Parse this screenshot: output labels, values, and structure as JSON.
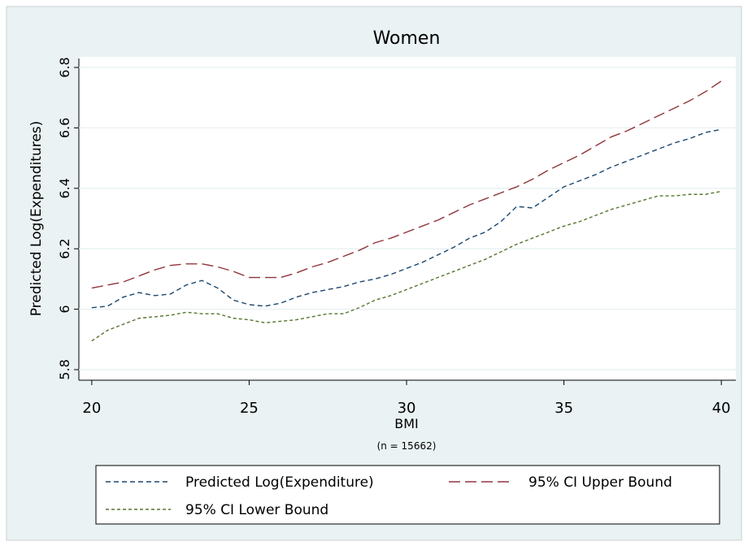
{
  "chart_data": {
    "type": "line",
    "title": "Women",
    "x_label": "BMI",
    "y_label": "Predicted Log(Expenditures)",
    "note": "(n = 15662)",
    "x": [
      20,
      20.5,
      21,
      21.5,
      22,
      22.5,
      23,
      23.5,
      24,
      24.5,
      25,
      25.5,
      26,
      26.5,
      27,
      27.5,
      28,
      28.5,
      29,
      29.5,
      30,
      30.5,
      31,
      31.5,
      32,
      32.5,
      33,
      33.5,
      34,
      34.5,
      35,
      35.5,
      36,
      36.5,
      37,
      37.5,
      38,
      38.5,
      39,
      39.5,
      40
    ],
    "series": [
      {
        "name": "Predicted Log(Expenditure)",
        "color": "#1a476f",
        "dash": "6 4",
        "values": [
          6.005,
          6.01,
          6.04,
          6.055,
          6.045,
          6.05,
          6.08,
          6.095,
          6.07,
          6.03,
          6.015,
          6.01,
          6.02,
          6.04,
          6.055,
          6.065,
          6.075,
          6.09,
          6.1,
          6.115,
          6.135,
          6.155,
          6.18,
          6.205,
          6.235,
          6.255,
          6.29,
          6.34,
          6.335,
          6.37,
          6.405,
          6.425,
          6.445,
          6.47,
          6.49,
          6.51,
          6.53,
          6.55,
          6.565,
          6.585,
          6.595
        ]
      },
      {
        "name": "95% CI Upper Bound",
        "color": "#90353b",
        "dash": "14 6",
        "values": [
          6.07,
          6.08,
          6.09,
          6.11,
          6.13,
          6.145,
          6.15,
          6.15,
          6.14,
          6.125,
          6.105,
          6.105,
          6.105,
          6.12,
          6.14,
          6.155,
          6.175,
          6.195,
          6.22,
          6.235,
          6.255,
          6.275,
          6.295,
          6.32,
          6.345,
          6.365,
          6.385,
          6.405,
          6.43,
          6.46,
          6.485,
          6.51,
          6.54,
          6.57,
          6.59,
          6.615,
          6.64,
          6.665,
          6.69,
          6.72,
          6.755
        ]
      },
      {
        "name": "95% CI Lower Bound",
        "color": "#55752f",
        "dash": "4 3",
        "values": [
          5.895,
          5.93,
          5.95,
          5.97,
          5.975,
          5.98,
          5.99,
          5.985,
          5.985,
          5.97,
          5.965,
          5.955,
          5.96,
          5.965,
          5.975,
          5.985,
          5.985,
          6.005,
          6.03,
          6.045,
          6.065,
          6.085,
          6.105,
          6.125,
          6.145,
          6.165,
          6.19,
          6.215,
          6.235,
          6.255,
          6.275,
          6.29,
          6.31,
          6.33,
          6.345,
          6.36,
          6.375,
          6.375,
          6.38,
          6.38,
          6.39
        ]
      }
    ],
    "xlim": [
      19.59,
      40.46
    ],
    "xticks": [
      20,
      25,
      30,
      35,
      40
    ],
    "ylim": [
      5.765,
      6.835
    ],
    "yticks": [
      5.8,
      6,
      6.2,
      6.4,
      6.6,
      6.8
    ],
    "grid": true
  }
}
